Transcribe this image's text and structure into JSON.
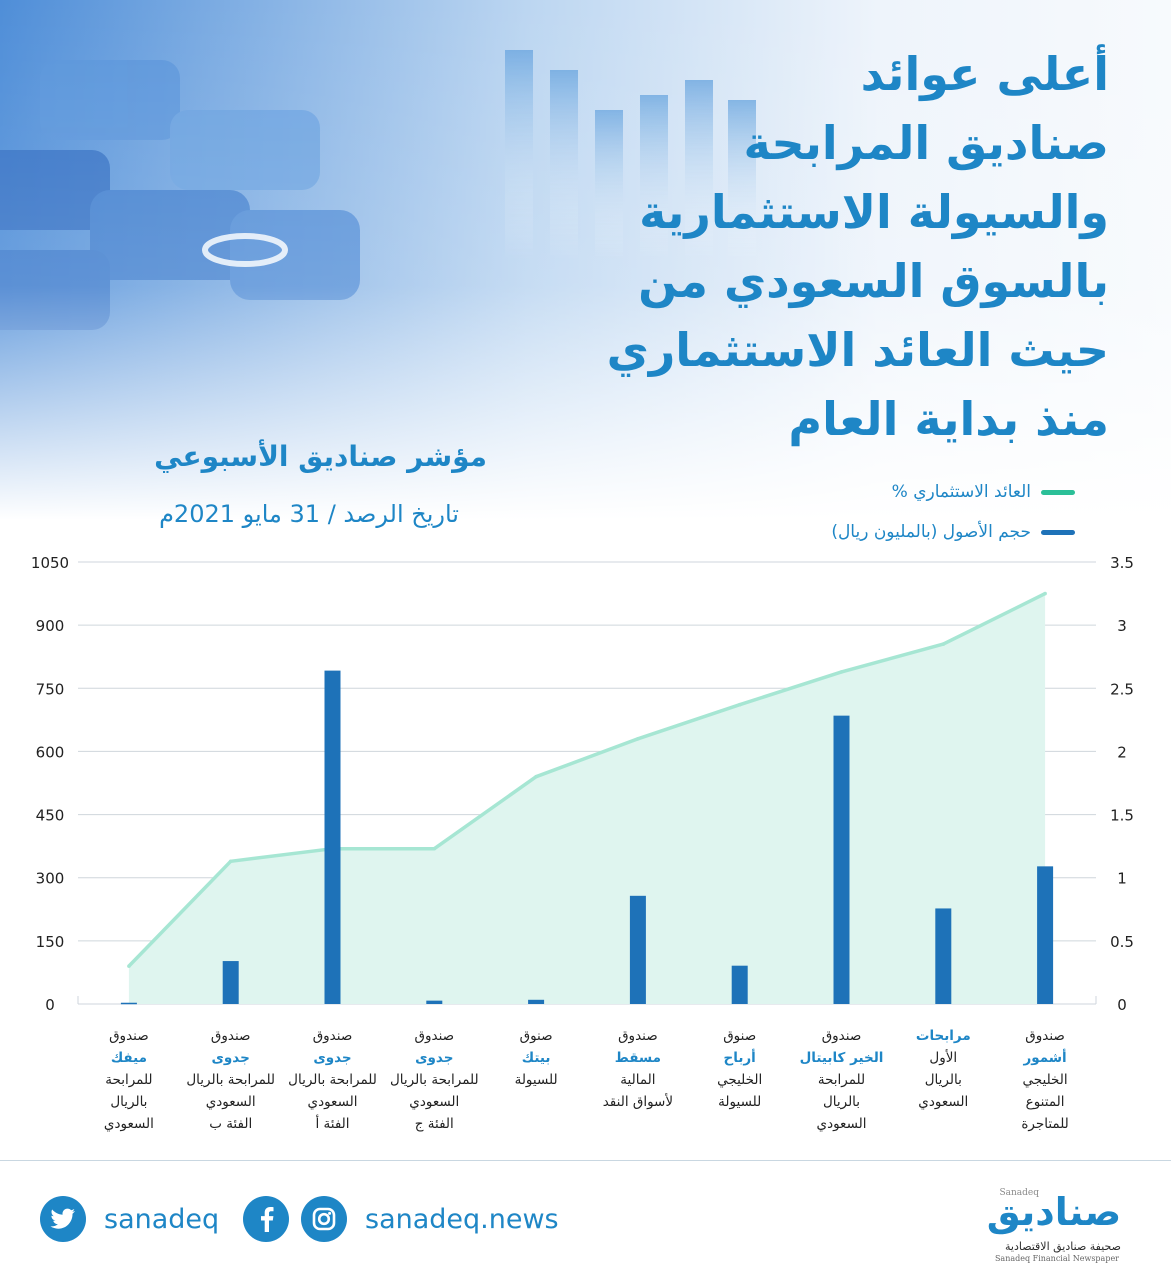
{
  "title_lines": [
    "أعلى عوائد",
    "صناديق المرابحة",
    "والسيولة الاستثمارية",
    "بالسوق السعودي من",
    "حيث العائد الاستثماري",
    "منذ بداية العام"
  ],
  "subtitle": "مؤشر صناديق الأسبوعي",
  "date_line": "تاريخ الرصد / 31 مايو 2021م",
  "legend": [
    {
      "label": "العائد الاستثماري %",
      "color": "#2bbf98"
    },
    {
      "label": "حجم الأصول (بالمليون ريال)",
      "color": "#1e72b8"
    }
  ],
  "colors": {
    "accent": "#1e86c6",
    "bar": "#1e72b8",
    "line": "#a6e6d3",
    "area": "#dff5ef",
    "grid": "#cfd6dc"
  },
  "chart_data": {
    "type": "bar",
    "left_axis": {
      "ticks": [
        "0",
        "150",
        "300",
        "450",
        "600",
        "750",
        "900",
        "1050"
      ],
      "range": [
        0,
        1050
      ]
    },
    "right_axis": {
      "ticks": [
        "0",
        "0.5",
        "1",
        "1.5",
        "2",
        "2.5",
        "3",
        "3.5"
      ],
      "range": [
        0,
        3.5
      ]
    },
    "categories": [
      {
        "lines": [
          "صندوق",
          "أشمور",
          "الخليجي",
          "المتنوع",
          "للمتاجرة"
        ],
        "highlight": 1
      },
      {
        "lines": [
          "مرابحات",
          "الأول",
          "بالريال",
          "السعودي"
        ],
        "highlight": 0
      },
      {
        "lines": [
          "صندوق",
          "الخير كابيتال",
          "للمرابحة",
          "بالريال",
          "السعودي"
        ],
        "highlight": 1
      },
      {
        "lines": [
          "صنوق",
          "أرباح",
          "الخليجي",
          "للسيولة"
        ],
        "highlight": 1
      },
      {
        "lines": [
          "صندوق",
          "مسقط",
          "المالية",
          "لأسواق النقد"
        ],
        "highlight": 1
      },
      {
        "lines": [
          "صنوق",
          "بيتك",
          "للسيولة"
        ],
        "highlight": 1
      },
      {
        "lines": [
          "صندوق",
          "جدوى",
          "للمرابحة بالريال",
          "السعودي",
          "الفئة ج"
        ],
        "highlight": 1
      },
      {
        "lines": [
          "صندوق",
          "جدوى",
          "للمرابحة بالريال",
          "السعودي",
          "الفئة أ"
        ],
        "highlight": 1
      },
      {
        "lines": [
          "صندوق",
          "جدوى",
          "للمرابحة بالريال",
          "السعودي",
          "الفئة ب"
        ],
        "highlight": 1
      },
      {
        "lines": [
          "صندوق",
          "ميفك",
          "للمرابحة",
          "بالريال",
          "السعودي"
        ],
        "highlight": 1
      }
    ],
    "series": [
      {
        "name": "حجم الأصول (بالمليون ريال)",
        "axis": "left",
        "kind": "bar",
        "values": [
          327,
          227,
          685,
          91,
          257,
          10,
          8,
          792,
          102,
          3
        ]
      },
      {
        "name": "العائد الاستثماري %",
        "axis": "right",
        "kind": "area",
        "values": [
          3.25,
          2.85,
          2.63,
          2.37,
          2.1,
          1.8,
          1.23,
          1.23,
          1.13,
          0.3
        ]
      }
    ],
    "grid": true,
    "legend_position": "top-right"
  },
  "footer": {
    "twitter_handle": "sanadeq",
    "site_handle": "sanadeq.news",
    "twitter_icon": "twitter-icon",
    "facebook_icon": "facebook-icon",
    "instagram_icon": "instagram-icon"
  },
  "logo": {
    "en_small": "Sanadeq",
    "ar_name": "صناديق",
    "ar_tagline": "صحيفة صناديق الاقتصادية",
    "en_tagline": "Sanadeq Financial Newspaper"
  }
}
